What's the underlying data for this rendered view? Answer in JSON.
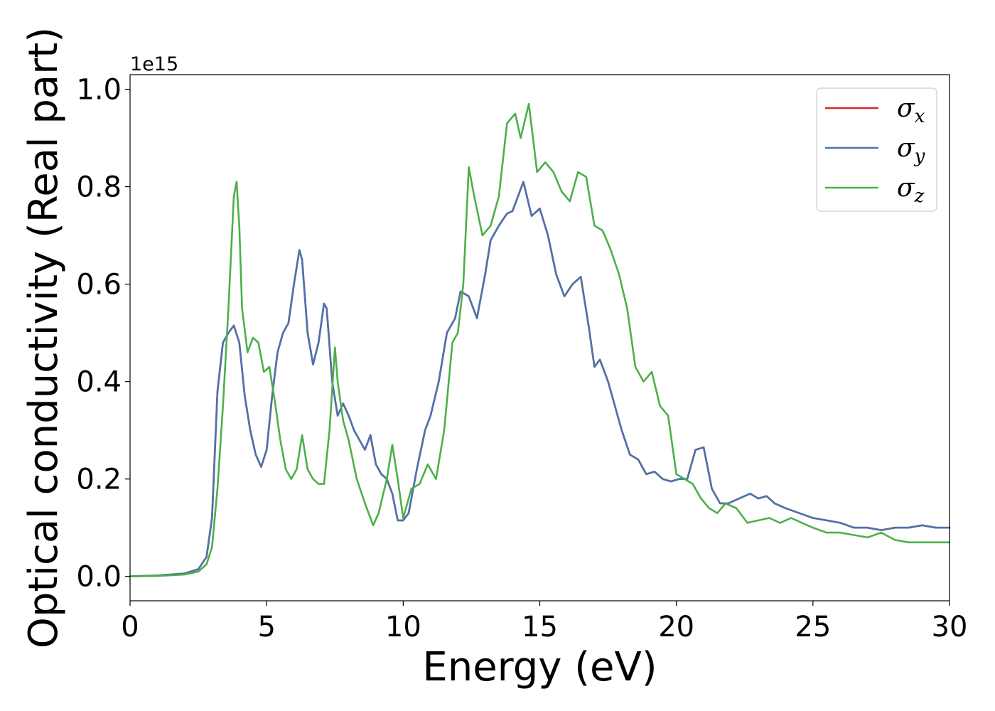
{
  "chart_data": {
    "type": "line",
    "xlabel": "Energy (eV)",
    "ylabel": "Optical conductivity (Real part)",
    "y_offset_text": "1e15",
    "xlim": [
      0,
      30
    ],
    "ylim": [
      -0.05,
      1.03
    ],
    "x_ticks": [
      0,
      5,
      10,
      15,
      20,
      25,
      30
    ],
    "x_tick_labels": [
      "0",
      "5",
      "10",
      "15",
      "20",
      "25",
      "30"
    ],
    "y_ticks": [
      0.0,
      0.2,
      0.4,
      0.6,
      0.8,
      1.0
    ],
    "y_tick_labels": [
      "0.0",
      "0.2",
      "0.4",
      "0.6",
      "0.8",
      "1.0"
    ],
    "grid": false,
    "legend_position": "top-right",
    "series": [
      {
        "name": "σx",
        "label_base": "σ",
        "label_sub": "x",
        "color": "#d62728",
        "x": [
          0,
          1,
          2,
          2.5,
          2.8,
          3.0,
          3.2,
          3.4,
          3.6,
          3.8,
          4.0,
          4.2,
          4.4,
          4.6,
          4.8,
          5.0,
          5.2,
          5.4,
          5.6,
          5.8,
          6.0,
          6.2,
          6.3,
          6.5,
          6.7,
          6.9,
          7.1,
          7.2,
          7.4,
          7.6,
          7.8,
          8.0,
          8.2,
          8.4,
          8.6,
          8.8,
          9.0,
          9.2,
          9.4,
          9.6,
          9.8,
          10.0,
          10.2,
          10.5,
          10.8,
          11.0,
          11.3,
          11.6,
          11.9,
          12.1,
          12.4,
          12.7,
          13.0,
          13.2,
          13.5,
          13.8,
          14.0,
          14.2,
          14.4,
          14.7,
          15.0,
          15.3,
          15.6,
          15.9,
          16.2,
          16.5,
          16.8,
          17.0,
          17.2,
          17.5,
          17.8,
          18.0,
          18.3,
          18.6,
          18.9,
          19.2,
          19.5,
          19.8,
          20.1,
          20.4,
          20.7,
          21.0,
          21.3,
          21.6,
          21.9,
          22.3,
          22.7,
          23.0,
          23.3,
          23.6,
          24.0,
          24.5,
          25.0,
          25.5,
          26.0,
          26.5,
          27.0,
          27.5,
          28.0,
          28.5,
          29.0,
          29.5,
          30.0
        ],
        "y": [
          0.0,
          0.002,
          0.006,
          0.015,
          0.04,
          0.12,
          0.38,
          0.48,
          0.5,
          0.515,
          0.48,
          0.37,
          0.3,
          0.25,
          0.225,
          0.26,
          0.37,
          0.46,
          0.5,
          0.52,
          0.6,
          0.67,
          0.65,
          0.5,
          0.435,
          0.48,
          0.56,
          0.55,
          0.4,
          0.33,
          0.355,
          0.33,
          0.3,
          0.28,
          0.26,
          0.29,
          0.23,
          0.21,
          0.2,
          0.17,
          0.115,
          0.115,
          0.13,
          0.22,
          0.3,
          0.33,
          0.4,
          0.5,
          0.53,
          0.585,
          0.575,
          0.53,
          0.62,
          0.69,
          0.72,
          0.745,
          0.75,
          0.78,
          0.81,
          0.74,
          0.755,
          0.7,
          0.62,
          0.575,
          0.6,
          0.615,
          0.51,
          0.43,
          0.445,
          0.4,
          0.34,
          0.3,
          0.25,
          0.24,
          0.21,
          0.215,
          0.2,
          0.195,
          0.2,
          0.2,
          0.26,
          0.265,
          0.18,
          0.15,
          0.15,
          0.16,
          0.17,
          0.16,
          0.165,
          0.15,
          0.14,
          0.13,
          0.12,
          0.115,
          0.11,
          0.1,
          0.1,
          0.095,
          0.1,
          0.1,
          0.105,
          0.1,
          0.1
        ]
      },
      {
        "name": "σy",
        "label_base": "σ",
        "label_sub": "y",
        "color": "#4a74ad",
        "x": [
          0,
          1,
          2,
          2.5,
          2.8,
          3.0,
          3.2,
          3.4,
          3.6,
          3.8,
          4.0,
          4.2,
          4.4,
          4.6,
          4.8,
          5.0,
          5.2,
          5.4,
          5.6,
          5.8,
          6.0,
          6.2,
          6.3,
          6.5,
          6.7,
          6.9,
          7.1,
          7.2,
          7.4,
          7.6,
          7.8,
          8.0,
          8.2,
          8.4,
          8.6,
          8.8,
          9.0,
          9.2,
          9.4,
          9.6,
          9.8,
          10.0,
          10.2,
          10.5,
          10.8,
          11.0,
          11.3,
          11.6,
          11.9,
          12.1,
          12.4,
          12.7,
          13.0,
          13.2,
          13.5,
          13.8,
          14.0,
          14.2,
          14.4,
          14.7,
          15.0,
          15.3,
          15.6,
          15.9,
          16.2,
          16.5,
          16.8,
          17.0,
          17.2,
          17.5,
          17.8,
          18.0,
          18.3,
          18.6,
          18.9,
          19.2,
          19.5,
          19.8,
          20.1,
          20.4,
          20.7,
          21.0,
          21.3,
          21.6,
          21.9,
          22.3,
          22.7,
          23.0,
          23.3,
          23.6,
          24.0,
          24.5,
          25.0,
          25.5,
          26.0,
          26.5,
          27.0,
          27.5,
          28.0,
          28.5,
          29.0,
          29.5,
          30.0
        ],
        "y": [
          0.0,
          0.002,
          0.006,
          0.015,
          0.04,
          0.12,
          0.38,
          0.48,
          0.5,
          0.515,
          0.48,
          0.37,
          0.3,
          0.25,
          0.225,
          0.26,
          0.37,
          0.46,
          0.5,
          0.52,
          0.6,
          0.67,
          0.65,
          0.5,
          0.435,
          0.48,
          0.56,
          0.55,
          0.4,
          0.33,
          0.355,
          0.33,
          0.3,
          0.28,
          0.26,
          0.29,
          0.23,
          0.21,
          0.2,
          0.17,
          0.115,
          0.115,
          0.13,
          0.22,
          0.3,
          0.33,
          0.4,
          0.5,
          0.53,
          0.585,
          0.575,
          0.53,
          0.62,
          0.69,
          0.72,
          0.745,
          0.75,
          0.78,
          0.81,
          0.74,
          0.755,
          0.7,
          0.62,
          0.575,
          0.6,
          0.615,
          0.51,
          0.43,
          0.445,
          0.4,
          0.34,
          0.3,
          0.25,
          0.24,
          0.21,
          0.215,
          0.2,
          0.195,
          0.2,
          0.2,
          0.26,
          0.265,
          0.18,
          0.15,
          0.15,
          0.16,
          0.17,
          0.16,
          0.165,
          0.15,
          0.14,
          0.13,
          0.12,
          0.115,
          0.11,
          0.1,
          0.1,
          0.095,
          0.1,
          0.1,
          0.105,
          0.1,
          0.1
        ]
      },
      {
        "name": "σz",
        "label_base": "σ",
        "label_sub": "z",
        "color": "#4daf4a",
        "x": [
          0,
          1,
          2,
          2.5,
          2.8,
          3.0,
          3.2,
          3.4,
          3.6,
          3.8,
          3.9,
          4.0,
          4.1,
          4.3,
          4.5,
          4.7,
          4.9,
          5.1,
          5.3,
          5.5,
          5.7,
          5.9,
          6.1,
          6.3,
          6.5,
          6.7,
          6.9,
          7.1,
          7.3,
          7.5,
          7.6,
          7.8,
          8.0,
          8.3,
          8.6,
          8.9,
          9.1,
          9.4,
          9.6,
          9.8,
          10.0,
          10.3,
          10.6,
          10.9,
          11.2,
          11.5,
          11.8,
          12.0,
          12.2,
          12.4,
          12.6,
          12.9,
          13.2,
          13.5,
          13.8,
          14.1,
          14.3,
          14.6,
          14.9,
          15.2,
          15.5,
          15.8,
          16.1,
          16.4,
          16.7,
          17.0,
          17.3,
          17.6,
          17.9,
          18.2,
          18.5,
          18.8,
          19.1,
          19.4,
          19.7,
          20.0,
          20.3,
          20.6,
          20.9,
          21.2,
          21.5,
          21.8,
          22.2,
          22.6,
          23.0,
          23.4,
          23.8,
          24.2,
          24.6,
          25.0,
          25.5,
          26.0,
          26.5,
          27.0,
          27.5,
          28.0,
          28.5,
          29.0,
          29.5,
          30.0
        ],
        "y": [
          0.0,
          0.001,
          0.004,
          0.01,
          0.025,
          0.06,
          0.18,
          0.35,
          0.55,
          0.78,
          0.81,
          0.72,
          0.55,
          0.46,
          0.49,
          0.48,
          0.42,
          0.43,
          0.36,
          0.28,
          0.22,
          0.2,
          0.22,
          0.29,
          0.22,
          0.2,
          0.19,
          0.19,
          0.3,
          0.47,
          0.4,
          0.32,
          0.28,
          0.2,
          0.15,
          0.105,
          0.13,
          0.2,
          0.27,
          0.2,
          0.12,
          0.18,
          0.19,
          0.23,
          0.2,
          0.3,
          0.48,
          0.5,
          0.6,
          0.84,
          0.78,
          0.7,
          0.72,
          0.78,
          0.93,
          0.95,
          0.9,
          0.97,
          0.83,
          0.85,
          0.83,
          0.79,
          0.77,
          0.83,
          0.82,
          0.72,
          0.71,
          0.67,
          0.62,
          0.55,
          0.43,
          0.4,
          0.42,
          0.35,
          0.33,
          0.21,
          0.2,
          0.19,
          0.16,
          0.14,
          0.13,
          0.15,
          0.14,
          0.11,
          0.115,
          0.12,
          0.11,
          0.12,
          0.11,
          0.1,
          0.09,
          0.09,
          0.085,
          0.08,
          0.09,
          0.075,
          0.07,
          0.07,
          0.07,
          0.07
        ]
      }
    ]
  }
}
